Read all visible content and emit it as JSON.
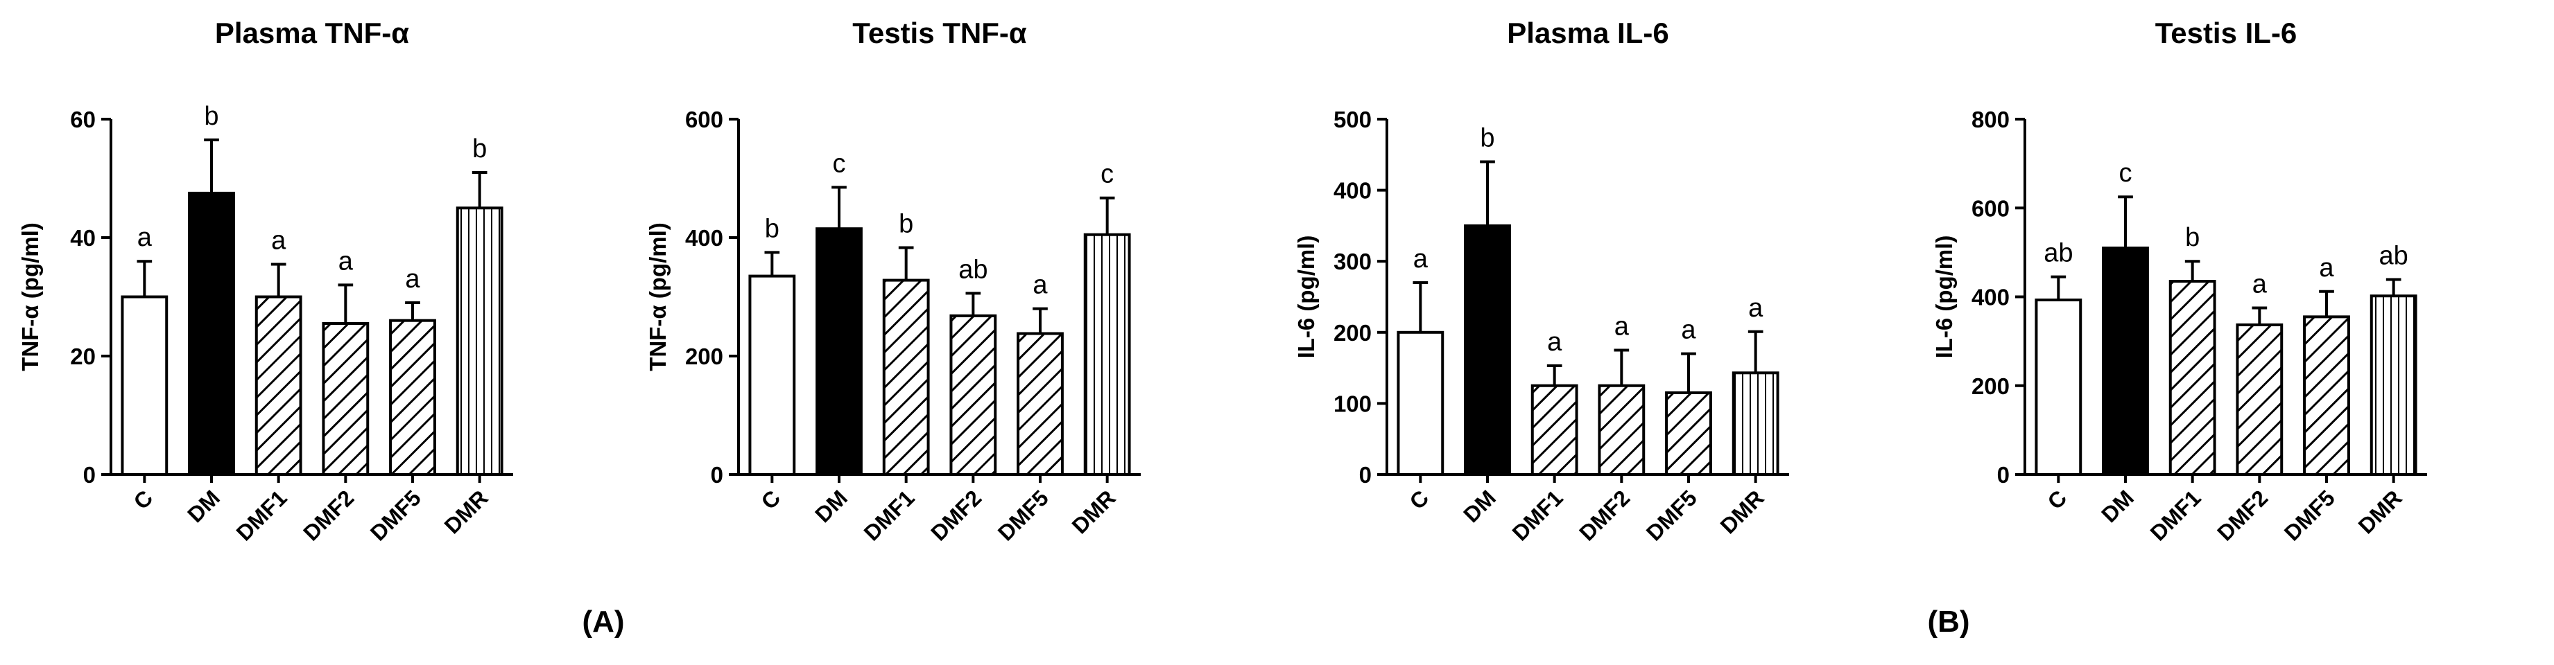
{
  "panel_labels": [
    "(A)",
    "(B)"
  ],
  "chart_data": [
    {
      "type": "bar",
      "title": "Plasma TNF-α",
      "ylabel": "TNF-α  (pg/ml)",
      "categories": [
        "C",
        "DM",
        "DMF1",
        "DMF2",
        "DMF5",
        "DMR"
      ],
      "values": [
        30,
        47.5,
        30,
        25.5,
        26,
        45
      ],
      "errors": [
        6,
        9,
        5.5,
        6.5,
        3,
        6
      ],
      "letters": [
        "a",
        "b",
        "a",
        "a",
        "a",
        "b"
      ],
      "ylim": [
        0,
        60
      ],
      "yticks": [
        0,
        20,
        40,
        60
      ],
      "grid": false,
      "fills": [
        "white",
        "black",
        "diag",
        "diag",
        "diag",
        "vert"
      ]
    },
    {
      "type": "bar",
      "title": "Testis TNF-α",
      "ylabel": "TNF-α (pg/ml)",
      "categories": [
        "C",
        "DM",
        "DMF1",
        "DMF2",
        "DMF5",
        "DMR"
      ],
      "values": [
        335,
        415,
        328,
        268,
        238,
        405
      ],
      "errors": [
        40,
        70,
        55,
        38,
        42,
        62
      ],
      "letters": [
        "b",
        "c",
        "b",
        "ab",
        "a",
        "c"
      ],
      "ylim": [
        0,
        600
      ],
      "yticks": [
        0,
        200,
        400,
        600
      ],
      "grid": false,
      "fills": [
        "white",
        "black",
        "diag",
        "diag",
        "diag",
        "vert"
      ]
    },
    {
      "type": "bar",
      "title": "Plasma IL-6",
      "ylabel": "IL-6 (pg/ml)",
      "categories": [
        "C",
        "DM",
        "DMF1",
        "DMF2",
        "DMF5",
        "DMR"
      ],
      "values": [
        200,
        350,
        125,
        125,
        115,
        143
      ],
      "errors": [
        70,
        90,
        28,
        50,
        55,
        58
      ],
      "letters": [
        "a",
        "b",
        "a",
        "a",
        "a",
        "a"
      ],
      "ylim": [
        0,
        500
      ],
      "yticks": [
        0,
        100,
        200,
        300,
        400,
        500
      ],
      "grid": false,
      "fills": [
        "white",
        "black",
        "diag",
        "diag",
        "diag",
        "vert"
      ]
    },
    {
      "type": "bar",
      "title": "Testis IL-6",
      "ylabel": "IL-6 (pg/ml)",
      "categories": [
        "C",
        "DM",
        "DMF1",
        "DMF2",
        "DMF5",
        "DMR"
      ],
      "values": [
        393,
        510,
        435,
        337,
        355,
        402
      ],
      "errors": [
        52,
        115,
        45,
        38,
        57,
        37
      ],
      "letters": [
        "ab",
        "c",
        "b",
        "a",
        "a",
        "ab"
      ],
      "ylim": [
        0,
        800
      ],
      "yticks": [
        0,
        200,
        400,
        600,
        800
      ],
      "grid": false,
      "fills": [
        "white",
        "black",
        "diag",
        "diag",
        "diag",
        "vert"
      ]
    }
  ]
}
